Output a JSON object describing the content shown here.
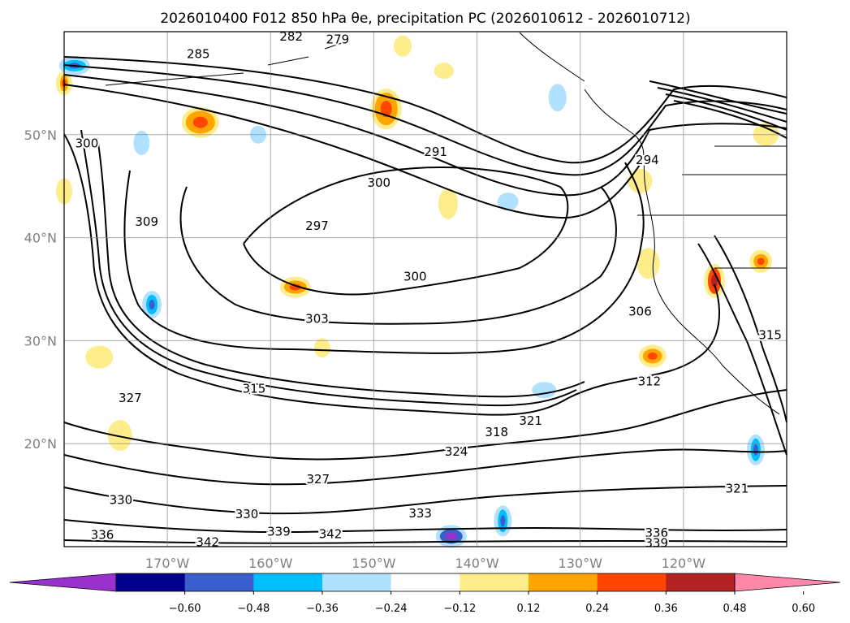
{
  "chart_data": {
    "type": "contour-map",
    "title": "2026010400 F012 850 hPa θe, precipitation PC (2026010612 - 2026010712)",
    "x_ticks": [
      {
        "lon": -170,
        "label": "170°W"
      },
      {
        "lon": -160,
        "label": "160°W"
      },
      {
        "lon": -150,
        "label": "150°W"
      },
      {
        "lon": -140,
        "label": "140°W"
      },
      {
        "lon": -130,
        "label": "130°W"
      },
      {
        "lon": -120,
        "label": "120°W"
      }
    ],
    "y_ticks": [
      {
        "lat": 20,
        "label": "20°N"
      },
      {
        "lat": 30,
        "label": "30°N"
      },
      {
        "lat": 40,
        "label": "40°N"
      },
      {
        "lat": 50,
        "label": "50°N"
      }
    ],
    "lon_range": [
      -180,
      -110
    ],
    "lat_range": [
      10,
      60
    ],
    "grid": true,
    "colorbar": {
      "position": "bottom",
      "ticks": [
        "−0.60",
        "−0.48",
        "−0.36",
        "−0.24",
        "−0.12",
        "0.12",
        "0.24",
        "0.36",
        "0.48",
        "0.60"
      ],
      "colors": [
        "#9932cc",
        "#00008b",
        "#3a5fcd",
        "#00bfff",
        "#b0e2ff",
        "#ffffff",
        "#ffec8b",
        "#ffa500",
        "#ff4500",
        "#b22222",
        "#ff88aa"
      ]
    },
    "contour_labels": [
      {
        "text": "282",
        "lon": -158,
        "lat": 59.5
      },
      {
        "text": "279",
        "lon": -153.5,
        "lat": 59.2
      },
      {
        "text": "285",
        "lon": -167,
        "lat": 57.8
      },
      {
        "text": "300",
        "lon": -177.8,
        "lat": 49.1
      },
      {
        "text": "291",
        "lon": -144,
        "lat": 48.3
      },
      {
        "text": "300",
        "lon": -149.5,
        "lat": 45.3
      },
      {
        "text": "294",
        "lon": -123.5,
        "lat": 47.5
      },
      {
        "text": "309",
        "lon": -172,
        "lat": 41.5
      },
      {
        "text": "297",
        "lon": -155.5,
        "lat": 41.1
      },
      {
        "text": "300",
        "lon": -146,
        "lat": 36.2
      },
      {
        "text": "306",
        "lon": -124.2,
        "lat": 32.8
      },
      {
        "text": "303",
        "lon": -155.5,
        "lat": 32.1
      },
      {
        "text": "315",
        "lon": -111.6,
        "lat": 30.5
      },
      {
        "text": "315",
        "lon": -161.6,
        "lat": 25.3
      },
      {
        "text": "327",
        "lon": -173.6,
        "lat": 24.4
      },
      {
        "text": "312",
        "lon": -123.3,
        "lat": 26.0
      },
      {
        "text": "321",
        "lon": -134.8,
        "lat": 22.2
      },
      {
        "text": "318",
        "lon": -138.1,
        "lat": 21.1
      },
      {
        "text": "324",
        "lon": -142,
        "lat": 19.2
      },
      {
        "text": "327",
        "lon": -155.4,
        "lat": 16.5
      },
      {
        "text": "330",
        "lon": -174.5,
        "lat": 14.5
      },
      {
        "text": "330",
        "lon": -162.3,
        "lat": 13.1
      },
      {
        "text": "333",
        "lon": -145.5,
        "lat": 13.2
      },
      {
        "text": "321",
        "lon": -114.8,
        "lat": 15.6
      },
      {
        "text": "339",
        "lon": -159.2,
        "lat": 11.4
      },
      {
        "text": "342",
        "lon": -154.2,
        "lat": 11.2
      },
      {
        "text": "336",
        "lon": -176.3,
        "lat": 11.1
      },
      {
        "text": "342",
        "lon": -166.1,
        "lat": 10.4
      },
      {
        "text": "336",
        "lon": -122.6,
        "lat": 11.3
      },
      {
        "text": "339",
        "lon": -122.6,
        "lat": 10.3
      }
    ],
    "precip_patches": [
      {
        "lon": -148.8,
        "lat": 52.5,
        "rx": 14,
        "ry": 20,
        "level": "0.36"
      },
      {
        "lon": -166.8,
        "lat": 51.2,
        "rx": 18,
        "ry": 14,
        "level": "0.36"
      },
      {
        "lon": -124.2,
        "lat": 45.5,
        "rx": 10,
        "ry": 10,
        "level": "0.24"
      },
      {
        "lon": -142.8,
        "lat": 43.3,
        "rx": 7,
        "ry": 14,
        "level": "0.24"
      },
      {
        "lon": -157.6,
        "lat": 35.2,
        "rx": 14,
        "ry": 8,
        "level": "0.36"
      },
      {
        "lon": -123.4,
        "lat": 37.5,
        "rx": 9,
        "ry": 14,
        "level": "0.24"
      },
      {
        "lon": -117.0,
        "lat": 35.8,
        "rx": 8,
        "ry": 16,
        "level": "0.48"
      },
      {
        "lon": -123.0,
        "lat": 28.5,
        "rx": 12,
        "ry": 9,
        "level": "0.36"
      },
      {
        "lon": -176.6,
        "lat": 28.4,
        "rx": 12,
        "ry": 9,
        "level": "0.24"
      },
      {
        "lon": -112.5,
        "lat": 37.7,
        "rx": 9,
        "ry": 9,
        "level": "0.36"
      },
      {
        "lon": -174.6,
        "lat": 20.8,
        "rx": 10,
        "ry": 14,
        "level": "0.24"
      },
      {
        "lon": -147.2,
        "lat": 58.6,
        "rx": 6,
        "ry": 8,
        "level": "0.24"
      },
      {
        "lon": -143.2,
        "lat": 56.2,
        "rx": 7,
        "ry": 5,
        "level": "0.24"
      },
      {
        "lon": -112.0,
        "lat": 50.0,
        "rx": 11,
        "ry": 9,
        "level": "0.24"
      },
      {
        "lon": -180,
        "lat": 44.5,
        "rx": 5,
        "ry": 11,
        "level": "0.24"
      },
      {
        "lon": -180,
        "lat": 55.0,
        "rx": 5,
        "ry": 10,
        "level": "0.36"
      },
      {
        "lon": -155.0,
        "lat": 29.3,
        "rx": 5,
        "ry": 7,
        "level": "0.24"
      },
      {
        "lon": -132.2,
        "lat": 53.6,
        "rx": 6,
        "ry": 12,
        "level": "-0.24"
      },
      {
        "lon": -137.0,
        "lat": 43.5,
        "rx": 8,
        "ry": 6,
        "level": "-0.24"
      },
      {
        "lon": -161.2,
        "lat": 50.0,
        "rx": 5,
        "ry": 6,
        "level": "-0.24"
      },
      {
        "lon": -179,
        "lat": 56.7,
        "rx": 14,
        "ry": 7,
        "level": "-0.36"
      },
      {
        "lon": -172.5,
        "lat": 49.2,
        "rx": 5,
        "ry": 10,
        "level": "-0.24"
      },
      {
        "lon": -171.5,
        "lat": 33.5,
        "rx": 7,
        "ry": 12,
        "level": "-0.36"
      },
      {
        "lon": -137.5,
        "lat": 12.5,
        "rx": 6,
        "ry": 14,
        "level": "-0.36"
      },
      {
        "lon": -142.5,
        "lat": 11.0,
        "rx": 14,
        "ry": 9,
        "level": "-0.48"
      },
      {
        "lon": -113.0,
        "lat": 19.4,
        "rx": 6,
        "ry": 14,
        "level": "-0.36"
      },
      {
        "lon": -133.5,
        "lat": 25.2,
        "rx": 10,
        "ry": 5,
        "level": "-0.24"
      }
    ]
  }
}
